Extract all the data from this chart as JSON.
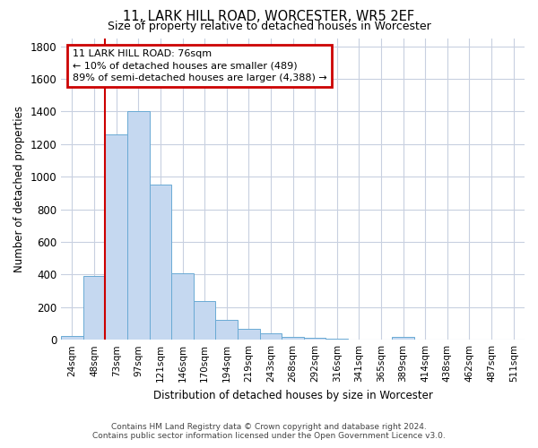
{
  "title": "11, LARK HILL ROAD, WORCESTER, WR5 2EF",
  "subtitle": "Size of property relative to detached houses in Worcester",
  "xlabel": "Distribution of detached houses by size in Worcester",
  "ylabel": "Number of detached properties",
  "bar_color": "#c5d8f0",
  "bar_edge_color": "#6aaad4",
  "background_color": "#ffffff",
  "grid_color": "#c8d0e0",
  "vline_color": "#cc0000",
  "annotation_box_color": "#cc0000",
  "categories": [
    "24sqm",
    "48sqm",
    "73sqm",
    "97sqm",
    "121sqm",
    "146sqm",
    "170sqm",
    "194sqm",
    "219sqm",
    "243sqm",
    "268sqm",
    "292sqm",
    "316sqm",
    "341sqm",
    "365sqm",
    "389sqm",
    "414sqm",
    "438sqm",
    "462sqm",
    "487sqm",
    "511sqm"
  ],
  "values": [
    25,
    390,
    1260,
    1400,
    950,
    410,
    235,
    120,
    65,
    42,
    20,
    10,
    5,
    2,
    2,
    15,
    2,
    0,
    0,
    0,
    0
  ],
  "ylim": [
    0,
    1850
  ],
  "yticks": [
    0,
    200,
    400,
    600,
    800,
    1000,
    1200,
    1400,
    1600,
    1800
  ],
  "vline_x_index": 1.5,
  "annotation_text_line1": "11 LARK HILL ROAD: 76sqm",
  "annotation_text_line2": "← 10% of detached houses are smaller (489)",
  "annotation_text_line3": "89% of semi-detached houses are larger (4,388) →",
  "footer_line1": "Contains HM Land Registry data © Crown copyright and database right 2024.",
  "footer_line2": "Contains public sector information licensed under the Open Government Licence v3.0."
}
